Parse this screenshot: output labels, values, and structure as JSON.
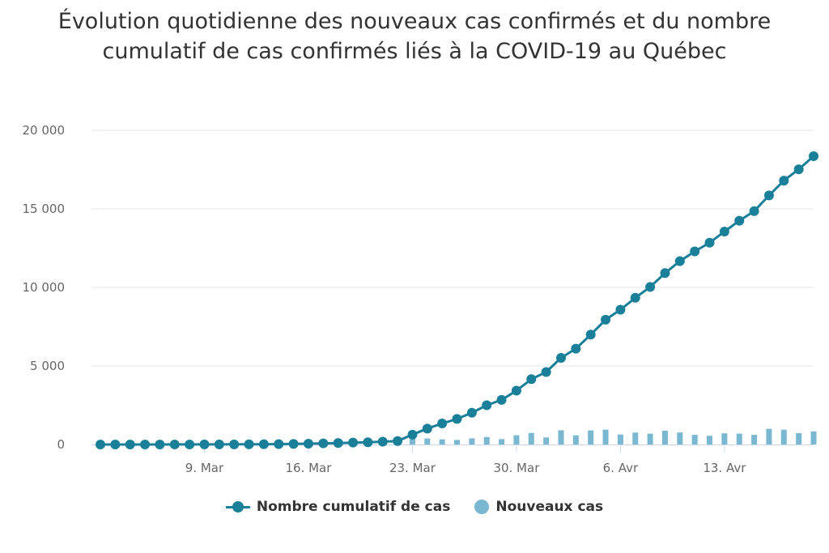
{
  "chart_data": {
    "type": "line",
    "title": "Évolution quotidienne des nouveaux cas confirmés et du nombre cumulatif de cas confirmés liés à la COVID-19 au Québec",
    "xlabel": "",
    "ylabel": "",
    "ylim": [
      0,
      20000
    ],
    "yticks": [
      0,
      5000,
      10000,
      15000,
      20000
    ],
    "ytick_labels": [
      "0",
      "5 000",
      "10 000",
      "15 000",
      "20 000"
    ],
    "x_start": "2020-03-02",
    "x_end": "2020-04-18",
    "xticks": [
      "2020-03-09",
      "2020-03-16",
      "2020-03-23",
      "2020-03-30",
      "2020-04-06",
      "2020-04-13"
    ],
    "xtick_labels": [
      "9. Mar",
      "16. Mar",
      "23. Mar",
      "30. Mar",
      "6. Avr",
      "13. Avr"
    ],
    "legend_position": "bottom-center",
    "grid": true,
    "series": [
      {
        "name": "Nombre cumulatif de cas",
        "type": "line",
        "color": "#1a7f99",
        "values": [
          1,
          1,
          1,
          1,
          2,
          3,
          3,
          4,
          7,
          9,
          13,
          17,
          24,
          39,
          50,
          74,
          94,
          121,
          139,
          181,
          219,
          628,
          1013,
          1339,
          1629,
          2021,
          2498,
          2840,
          3430,
          4162,
          4611,
          5518,
          6101,
          6997,
          7944,
          8580,
          9340,
          10031,
          10912,
          11677,
          12292,
          12846,
          13557,
          14248,
          14860,
          15857,
          16798,
          17521,
          18357
        ]
      },
      {
        "name": "Nouveaux cas",
        "type": "column",
        "color": "#7ab8d1",
        "values": [
          0,
          0,
          0,
          0,
          1,
          1,
          0,
          1,
          3,
          2,
          4,
          4,
          7,
          15,
          11,
          24,
          20,
          27,
          18,
          42,
          38,
          409,
          385,
          326,
          290,
          392,
          477,
          342,
          590,
          732,
          449,
          907,
          583,
          896,
          947,
          636,
          760,
          691,
          881,
          765,
          615,
          554,
          711,
          691,
          612,
          997,
          941,
          723,
          836
        ]
      }
    ]
  }
}
